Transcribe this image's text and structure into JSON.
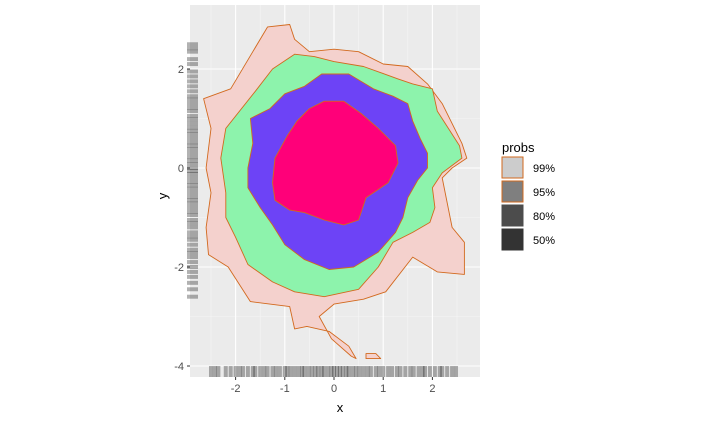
{
  "chart_data": {
    "type": "density contour",
    "xlabel": "x",
    "ylabel": "y",
    "xlim": [
      -2.85,
      2.75
    ],
    "ylim": [
      -4.05,
      3.0
    ],
    "x_ticks": [
      -2,
      -1,
      0,
      1,
      2
    ],
    "y_ticks": [
      -4,
      -2,
      0,
      2
    ],
    "x_tick_labels": [
      "-2",
      "-1",
      "0",
      "1",
      "2"
    ],
    "y_tick_labels": [
      "-4",
      "-2",
      "0",
      "2"
    ],
    "grid": true,
    "legend": {
      "title": "probs",
      "placement": "right",
      "entries": [
        {
          "label": "99%",
          "fill": "#cccccc",
          "stroke": "#d2691e"
        },
        {
          "label": "95%",
          "fill": "#7f7f7f",
          "stroke": "#d2691e"
        },
        {
          "label": "80%",
          "fill": "#4c4c4c",
          "stroke": "#4c4c4c"
        },
        {
          "label": "50%",
          "fill": "#333333",
          "stroke": "#333333"
        }
      ]
    },
    "series": [
      {
        "level": "99%",
        "fill": "#f4d1cd",
        "stroke": "#d2691e",
        "polygons": [
          [
            [
              -1.35,
              2.85
            ],
            [
              -0.9,
              2.9
            ],
            [
              -0.8,
              2.6
            ],
            [
              -0.5,
              2.35
            ],
            [
              0,
              2.4
            ],
            [
              0.5,
              2.35
            ],
            [
              1,
              2.1
            ],
            [
              1.5,
              2.05
            ],
            [
              1.9,
              1.7
            ],
            [
              2.2,
              1.3
            ],
            [
              2.6,
              0.5
            ],
            [
              2.7,
              0.2
            ],
            [
              2.4,
              0
            ],
            [
              2.2,
              -0.2
            ],
            [
              2.4,
              -1.2
            ],
            [
              2.65,
              -1.5
            ],
            [
              2.65,
              -2.15
            ],
            [
              2.1,
              -2.1
            ],
            [
              1.6,
              -1.8
            ],
            [
              1.05,
              -2.5
            ],
            [
              0.6,
              -2.65
            ],
            [
              0,
              -2.75
            ],
            [
              -0.3,
              -3.0
            ],
            [
              -0.05,
              -3.45
            ],
            [
              0.35,
              -3.8
            ],
            [
              0.45,
              -3.85
            ],
            [
              0.3,
              -3.6
            ],
            [
              -0.1,
              -3.3
            ],
            [
              -0.55,
              -3.2
            ],
            [
              -0.8,
              -3.25
            ],
            [
              -0.9,
              -2.8
            ],
            [
              -1.7,
              -2.7
            ],
            [
              -2.15,
              -2.0
            ],
            [
              -2.55,
              -1.75
            ],
            [
              -2.6,
              -1.2
            ],
            [
              -2.5,
              -0.5
            ],
            [
              -2.6,
              0
            ],
            [
              -2.5,
              0.8
            ],
            [
              -2.65,
              1.4
            ],
            [
              -2.1,
              1.6
            ],
            [
              -1.65,
              2.35
            ],
            [
              -1.35,
              2.85
            ]
          ],
          [
            [
              0.65,
              -3.75
            ],
            [
              0.85,
              -3.75
            ],
            [
              0.95,
              -3.85
            ],
            [
              0.65,
              -3.85
            ],
            [
              0.65,
              -3.75
            ]
          ]
        ]
      },
      {
        "level": "95%",
        "fill": "#8df3ac",
        "stroke": "#d2691e",
        "polygons": [
          [
            [
              -1.25,
              2.0
            ],
            [
              -0.8,
              2.3
            ],
            [
              -0.4,
              2.25
            ],
            [
              0,
              2.15
            ],
            [
              0.6,
              2.05
            ],
            [
              1.3,
              1.8
            ],
            [
              1.6,
              1.7
            ],
            [
              2.0,
              1.6
            ],
            [
              2.1,
              1.15
            ],
            [
              2.55,
              0.45
            ],
            [
              2.6,
              0.2
            ],
            [
              2.2,
              -0.1
            ],
            [
              2.0,
              -0.4
            ],
            [
              2.05,
              -0.8
            ],
            [
              1.95,
              -1.1
            ],
            [
              1.6,
              -1.3
            ],
            [
              1.2,
              -1.5
            ],
            [
              0.9,
              -2.0
            ],
            [
              0.5,
              -2.45
            ],
            [
              -0.2,
              -2.6
            ],
            [
              -0.8,
              -2.5
            ],
            [
              -1.25,
              -2.3
            ],
            [
              -1.75,
              -1.95
            ],
            [
              -2.0,
              -1.4
            ],
            [
              -2.2,
              -1.0
            ],
            [
              -2.2,
              -0.5
            ],
            [
              -2.3,
              0.2
            ],
            [
              -2.2,
              0.8
            ],
            [
              -1.6,
              1.55
            ],
            [
              -1.25,
              2.0
            ]
          ]
        ]
      },
      {
        "level": "80%",
        "fill": "#6d43f6",
        "stroke": "#d2691e",
        "polygons": [
          [
            [
              -0.6,
              1.65
            ],
            [
              -0.25,
              1.9
            ],
            [
              0.3,
              1.9
            ],
            [
              0.8,
              1.6
            ],
            [
              1.2,
              1.45
            ],
            [
              1.5,
              1.3
            ],
            [
              1.6,
              0.95
            ],
            [
              1.75,
              0.6
            ],
            [
              1.9,
              0.3
            ],
            [
              1.9,
              0
            ],
            [
              1.7,
              -0.25
            ],
            [
              1.5,
              -0.6
            ],
            [
              1.4,
              -1.0
            ],
            [
              1.25,
              -1.3
            ],
            [
              0.9,
              -1.7
            ],
            [
              0.4,
              -2.0
            ],
            [
              -0.1,
              -2.05
            ],
            [
              -0.6,
              -1.85
            ],
            [
              -1.0,
              -1.55
            ],
            [
              -1.25,
              -1.15
            ],
            [
              -1.5,
              -0.8
            ],
            [
              -1.75,
              -0.4
            ],
            [
              -1.75,
              0
            ],
            [
              -1.65,
              0.5
            ],
            [
              -1.7,
              1.0
            ],
            [
              -1.3,
              1.2
            ],
            [
              -1.0,
              1.5
            ],
            [
              -0.6,
              1.65
            ]
          ]
        ]
      },
      {
        "level": "50%",
        "fill": "#ff0079",
        "stroke": "#d2691e",
        "polygons": [
          [
            [
              -0.5,
              1.2
            ],
            [
              -0.2,
              1.35
            ],
            [
              0.2,
              1.35
            ],
            [
              0.55,
              1.1
            ],
            [
              0.9,
              0.8
            ],
            [
              1.25,
              0.45
            ],
            [
              1.3,
              0.1
            ],
            [
              1.1,
              -0.3
            ],
            [
              0.65,
              -0.6
            ],
            [
              0.5,
              -1.05
            ],
            [
              0.2,
              -1.15
            ],
            [
              -0.2,
              -1.05
            ],
            [
              -0.6,
              -0.9
            ],
            [
              -0.9,
              -0.85
            ],
            [
              -1.2,
              -0.65
            ],
            [
              -1.25,
              -0.3
            ],
            [
              -1.2,
              0.2
            ],
            [
              -0.95,
              0.65
            ],
            [
              -0.75,
              0.95
            ],
            [
              -0.5,
              1.2
            ]
          ]
        ]
      }
    ],
    "rug_color": "#000000",
    "rug_x": [
      -2.5,
      -2.42,
      -2.35,
      -2.2,
      -2.1,
      -2.0,
      -1.92,
      -1.85,
      -1.75,
      -1.65,
      -1.6,
      -1.5,
      -1.42,
      -1.35,
      -1.25,
      -1.18,
      -1.1,
      -1.0,
      -0.95,
      -0.88,
      -0.8,
      -0.72,
      -0.65,
      -0.6,
      -0.52,
      -0.45,
      -0.38,
      -0.32,
      -0.25,
      -0.2,
      -0.12,
      -0.05,
      0,
      0.06,
      0.12,
      0.18,
      0.25,
      0.3,
      0.38,
      0.45,
      0.52,
      0.6,
      0.68,
      0.75,
      0.85,
      0.92,
      1.0,
      1.1,
      1.18,
      1.28,
      1.35,
      1.45,
      1.55,
      1.62,
      1.72,
      1.8,
      1.85,
      1.95,
      2.05,
      2.15,
      2.2,
      2.3,
      2.4,
      2.48
    ],
    "rug_y": [
      2.5,
      2.42,
      2.35,
      2.2,
      2.1,
      1.95,
      1.85,
      1.75,
      1.65,
      1.55,
      1.45,
      1.38,
      1.3,
      1.22,
      1.15,
      1.05,
      0.98,
      0.9,
      0.82,
      0.75,
      0.68,
      0.6,
      0.52,
      0.45,
      0.38,
      0.3,
      0.22,
      0.15,
      0.08,
      0,
      -0.06,
      -0.12,
      -0.2,
      -0.28,
      -0.35,
      -0.42,
      -0.5,
      -0.58,
      -0.65,
      -0.72,
      -0.8,
      -0.88,
      -0.95,
      -1.05,
      -1.12,
      -1.2,
      -1.3,
      -1.38,
      -1.45,
      -1.55,
      -1.65,
      -1.72,
      -1.8,
      -1.9,
      -2.0,
      -2.1,
      -2.2,
      -2.32,
      -2.45,
      -2.6
    ]
  }
}
